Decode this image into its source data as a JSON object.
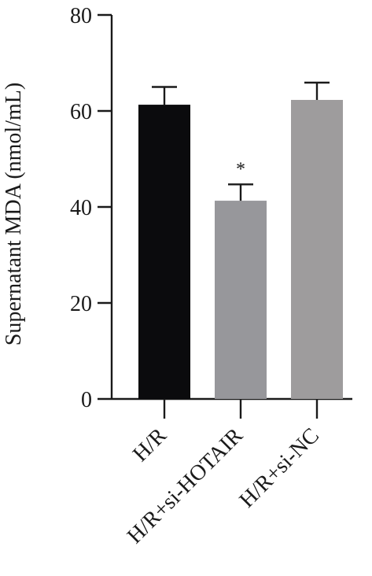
{
  "chart_data": {
    "type": "bar",
    "title": "",
    "xlabel": "",
    "ylabel": "Supernatant MDA (nmol/mL)",
    "ylim": [
      0,
      80
    ],
    "yticks": [
      0,
      20,
      40,
      60,
      80
    ],
    "categories": [
      "H/R",
      "H/R+si-HOTAIR",
      "H/R+si-NC"
    ],
    "values": [
      61.3,
      41.3,
      62.3
    ],
    "errors": [
      3.7,
      3.4,
      3.6
    ],
    "significance": [
      "",
      "*",
      ""
    ],
    "colors": [
      "#0b0b0d",
      "#97979b",
      "#9e9c9d"
    ],
    "grid": false,
    "legend": "none"
  }
}
